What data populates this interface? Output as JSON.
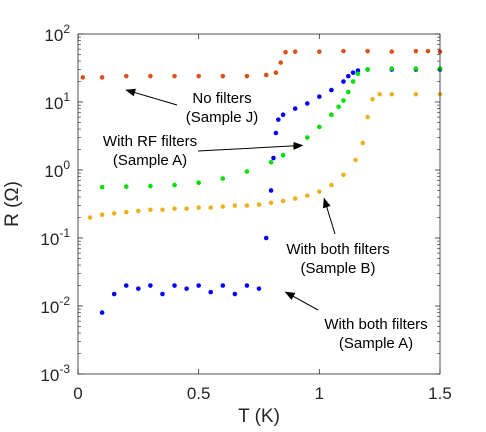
{
  "chart_data": {
    "type": "scatter",
    "title": "",
    "xlabel": "T (K)",
    "ylabel": "R (Ω)",
    "xlim": [
      0,
      1.5
    ],
    "ylim": [
      0.001,
      100
    ],
    "yscale": "log",
    "grid": false,
    "x_ticks": [
      {
        "value": 0,
        "label": "0"
      },
      {
        "value": 0.5,
        "label": "0.5"
      },
      {
        "value": 1,
        "label": "1"
      },
      {
        "value": 1.5,
        "label": "1.5"
      }
    ],
    "y_ticks": [
      {
        "value": 0.001,
        "base": "10",
        "exp": "-3"
      },
      {
        "value": 0.01,
        "base": "10",
        "exp": "-2"
      },
      {
        "value": 0.1,
        "base": "10",
        "exp": "-1"
      },
      {
        "value": 1,
        "base": "10",
        "exp": "0"
      },
      {
        "value": 10,
        "base": "10",
        "exp": "1"
      },
      {
        "value": 100,
        "base": "10",
        "exp": "2"
      }
    ],
    "series": [
      {
        "color": "#d95319",
        "x": [
          0.02,
          0.1,
          0.2,
          0.3,
          0.4,
          0.5,
          0.6,
          0.7,
          0.78,
          0.82,
          0.84,
          0.86,
          0.9,
          1.0,
          1.1,
          1.2,
          1.3,
          1.4,
          1.45,
          1.5
        ],
        "y": [
          23,
          23,
          24,
          24,
          24,
          24,
          24,
          24,
          25,
          27,
          38,
          54,
          55,
          55,
          56,
          56,
          55,
          56,
          56,
          55
        ]
      },
      {
        "color": "#0000ff",
        "x": [
          0.1,
          0.15,
          0.2,
          0.25,
          0.3,
          0.35,
          0.4,
          0.45,
          0.5,
          0.55,
          0.6,
          0.65,
          0.7,
          0.75,
          0.78,
          0.8,
          0.81,
          0.82,
          0.83,
          0.85,
          0.9,
          0.95,
          1.0,
          1.05,
          1.1,
          1.12,
          1.14,
          1.16,
          1.2,
          1.3,
          1.4,
          1.5
        ],
        "y": [
          0.008,
          0.015,
          0.02,
          0.018,
          0.02,
          0.015,
          0.02,
          0.018,
          0.02,
          0.016,
          0.02,
          0.015,
          0.02,
          0.018,
          0.1,
          0.5,
          1.5,
          3.5,
          5.5,
          6.5,
          8,
          9.5,
          12,
          15,
          20,
          24,
          27,
          29,
          30,
          30,
          30,
          30
        ]
      },
      {
        "color": "#00e000",
        "x": [
          0.1,
          0.2,
          0.3,
          0.4,
          0.5,
          0.6,
          0.7,
          0.8,
          0.85,
          0.9,
          0.95,
          1.0,
          1.05,
          1.08,
          1.1,
          1.12,
          1.14,
          1.16,
          1.2,
          1.3,
          1.4,
          1.5
        ],
        "y": [
          0.56,
          0.57,
          0.58,
          0.6,
          0.65,
          0.75,
          0.95,
          1.3,
          1.65,
          2.2,
          3.0,
          4.3,
          6.5,
          8.5,
          10.5,
          14,
          20,
          26,
          30,
          31,
          31,
          31
        ]
      },
      {
        "color": "#edb120",
        "x": [
          0.05,
          0.1,
          0.15,
          0.2,
          0.25,
          0.3,
          0.35,
          0.4,
          0.45,
          0.5,
          0.55,
          0.6,
          0.65,
          0.7,
          0.75,
          0.8,
          0.85,
          0.9,
          0.95,
          1.0,
          1.05,
          1.1,
          1.15,
          1.18,
          1.2,
          1.22,
          1.25,
          1.3,
          1.4,
          1.5
        ],
        "y": [
          0.2,
          0.22,
          0.23,
          0.24,
          0.25,
          0.26,
          0.26,
          0.27,
          0.27,
          0.28,
          0.28,
          0.29,
          0.3,
          0.3,
          0.31,
          0.33,
          0.35,
          0.38,
          0.42,
          0.48,
          0.6,
          0.85,
          1.4,
          2.5,
          6,
          11,
          13,
          13,
          13,
          13
        ]
      }
    ],
    "annotations": [
      {
        "lines": [
          "No filters",
          "(Sample J)"
        ],
        "arrow_to": [
          0.2,
          15
        ]
      },
      {
        "lines": [
          "With RF filters",
          "(Sample A)"
        ],
        "arrow_to": [
          0.93,
          2.3
        ]
      },
      {
        "lines": [
          "With both filters",
          "(Sample B)"
        ],
        "arrow_to": [
          1.02,
          0.38
        ]
      },
      {
        "lines": [
          "With both filters",
          "(Sample A)"
        ],
        "arrow_to": [
          0.86,
          0.016
        ]
      }
    ]
  }
}
